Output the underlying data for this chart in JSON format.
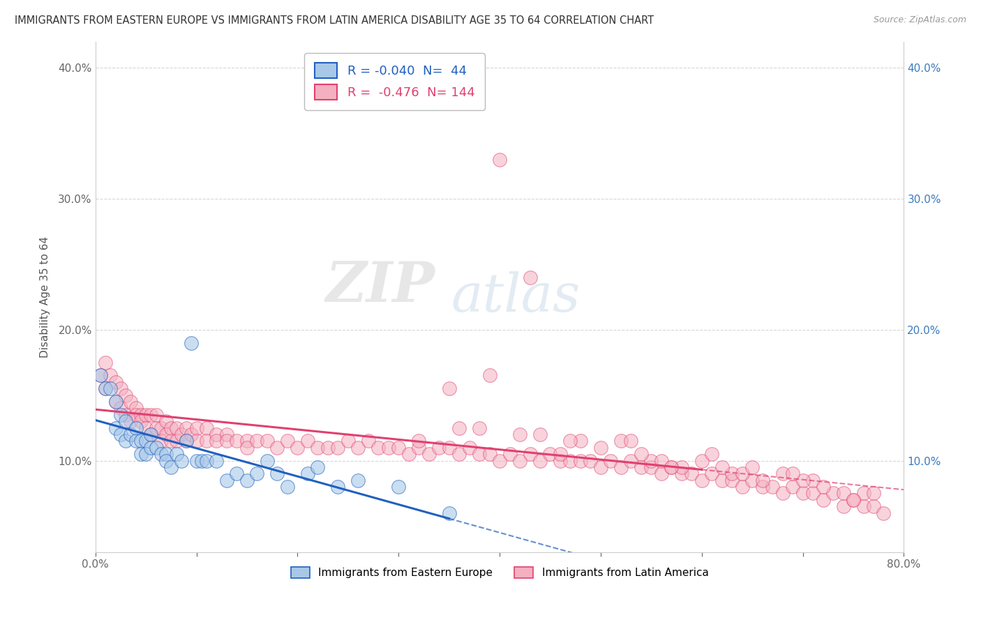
{
  "title": "IMMIGRANTS FROM EASTERN EUROPE VS IMMIGRANTS FROM LATIN AMERICA DISABILITY AGE 35 TO 64 CORRELATION CHART",
  "source": "Source: ZipAtlas.com",
  "ylabel": "Disability Age 35 to 64",
  "legend_labels": [
    "Immigrants from Eastern Europe",
    "Immigrants from Latin America"
  ],
  "legend_R": [
    -0.04,
    -0.476
  ],
  "legend_N": [
    44,
    144
  ],
  "xlim": [
    0.0,
    0.8
  ],
  "ylim": [
    0.03,
    0.42
  ],
  "color_eastern": "#a8c8e8",
  "color_latin": "#f4b0c0",
  "trendline_color_eastern": "#2060c0",
  "trendline_color_latin": "#e04070",
  "background_color": "#ffffff",
  "grid_color": "#cccccc",
  "eastern_x": [
    0.005,
    0.01,
    0.015,
    0.02,
    0.02,
    0.025,
    0.025,
    0.03,
    0.03,
    0.035,
    0.04,
    0.04,
    0.045,
    0.045,
    0.05,
    0.05,
    0.055,
    0.055,
    0.06,
    0.065,
    0.07,
    0.07,
    0.075,
    0.08,
    0.085,
    0.09,
    0.095,
    0.1,
    0.105,
    0.11,
    0.12,
    0.13,
    0.14,
    0.15,
    0.16,
    0.17,
    0.18,
    0.19,
    0.21,
    0.22,
    0.24,
    0.26,
    0.3,
    0.35
  ],
  "eastern_y": [
    0.165,
    0.155,
    0.155,
    0.145,
    0.125,
    0.135,
    0.12,
    0.13,
    0.115,
    0.12,
    0.125,
    0.115,
    0.115,
    0.105,
    0.115,
    0.105,
    0.12,
    0.11,
    0.11,
    0.105,
    0.105,
    0.1,
    0.095,
    0.105,
    0.1,
    0.115,
    0.19,
    0.1,
    0.1,
    0.1,
    0.1,
    0.085,
    0.09,
    0.085,
    0.09,
    0.1,
    0.09,
    0.08,
    0.09,
    0.095,
    0.08,
    0.085,
    0.08,
    0.06
  ],
  "latin_x": [
    0.005,
    0.01,
    0.01,
    0.015,
    0.02,
    0.02,
    0.025,
    0.025,
    0.03,
    0.03,
    0.035,
    0.035,
    0.04,
    0.04,
    0.045,
    0.045,
    0.05,
    0.05,
    0.055,
    0.055,
    0.06,
    0.06,
    0.065,
    0.065,
    0.07,
    0.07,
    0.075,
    0.075,
    0.08,
    0.08,
    0.085,
    0.09,
    0.09,
    0.095,
    0.1,
    0.1,
    0.11,
    0.11,
    0.12,
    0.12,
    0.13,
    0.13,
    0.14,
    0.15,
    0.15,
    0.16,
    0.17,
    0.18,
    0.19,
    0.2,
    0.21,
    0.22,
    0.23,
    0.24,
    0.25,
    0.26,
    0.27,
    0.28,
    0.29,
    0.3,
    0.31,
    0.32,
    0.33,
    0.34,
    0.35,
    0.36,
    0.37,
    0.38,
    0.39,
    0.4,
    0.41,
    0.42,
    0.43,
    0.44,
    0.45,
    0.46,
    0.47,
    0.48,
    0.49,
    0.5,
    0.51,
    0.52,
    0.53,
    0.54,
    0.55,
    0.56,
    0.57,
    0.58,
    0.59,
    0.6,
    0.61,
    0.62,
    0.63,
    0.64,
    0.65,
    0.66,
    0.67,
    0.68,
    0.69,
    0.7,
    0.71,
    0.72,
    0.73,
    0.74,
    0.75,
    0.76,
    0.77,
    0.78,
    0.32,
    0.46,
    0.55,
    0.63,
    0.71,
    0.38,
    0.52,
    0.6,
    0.68,
    0.76,
    0.42,
    0.58,
    0.66,
    0.74,
    0.44,
    0.5,
    0.62,
    0.7,
    0.48,
    0.56,
    0.64,
    0.72,
    0.36,
    0.54,
    0.4,
    0.35,
    0.65,
    0.75,
    0.43,
    0.53,
    0.61,
    0.69,
    0.77,
    0.39,
    0.47,
    0.57
  ],
  "latin_y": [
    0.165,
    0.175,
    0.155,
    0.165,
    0.16,
    0.145,
    0.155,
    0.14,
    0.15,
    0.135,
    0.145,
    0.13,
    0.14,
    0.135,
    0.135,
    0.13,
    0.135,
    0.125,
    0.135,
    0.12,
    0.135,
    0.125,
    0.125,
    0.115,
    0.13,
    0.12,
    0.125,
    0.115,
    0.125,
    0.115,
    0.12,
    0.125,
    0.115,
    0.12,
    0.125,
    0.115,
    0.125,
    0.115,
    0.12,
    0.115,
    0.12,
    0.115,
    0.115,
    0.115,
    0.11,
    0.115,
    0.115,
    0.11,
    0.115,
    0.11,
    0.115,
    0.11,
    0.11,
    0.11,
    0.115,
    0.11,
    0.115,
    0.11,
    0.11,
    0.11,
    0.105,
    0.11,
    0.105,
    0.11,
    0.11,
    0.105,
    0.11,
    0.105,
    0.105,
    0.1,
    0.105,
    0.1,
    0.105,
    0.1,
    0.105,
    0.1,
    0.1,
    0.1,
    0.1,
    0.095,
    0.1,
    0.095,
    0.1,
    0.095,
    0.095,
    0.09,
    0.095,
    0.09,
    0.09,
    0.085,
    0.09,
    0.085,
    0.085,
    0.08,
    0.085,
    0.08,
    0.08,
    0.075,
    0.08,
    0.075,
    0.075,
    0.07,
    0.075,
    0.065,
    0.07,
    0.065,
    0.065,
    0.06,
    0.115,
    0.105,
    0.1,
    0.09,
    0.085,
    0.125,
    0.115,
    0.1,
    0.09,
    0.075,
    0.12,
    0.095,
    0.085,
    0.075,
    0.12,
    0.11,
    0.095,
    0.085,
    0.115,
    0.1,
    0.09,
    0.08,
    0.125,
    0.105,
    0.33,
    0.155,
    0.095,
    0.07,
    0.24,
    0.115,
    0.105,
    0.09,
    0.075,
    0.165,
    0.115,
    0.095
  ]
}
